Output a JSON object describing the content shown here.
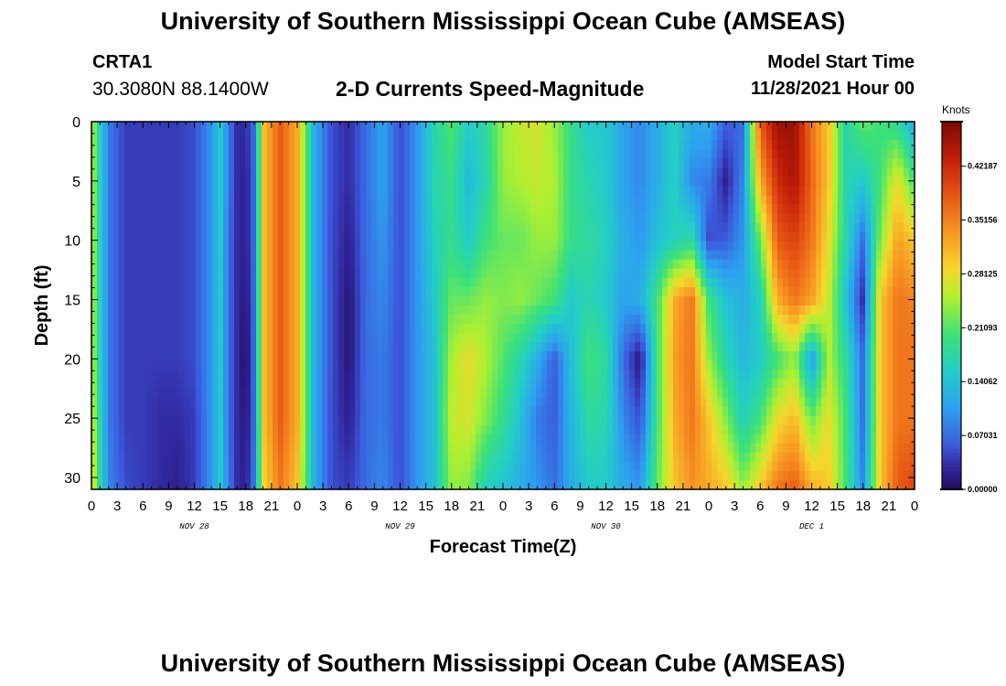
{
  "header": {
    "title": "University of Southern Mississippi Ocean Cube (AMSEAS)",
    "station": "CRTA1",
    "coords": "30.3080N  88.1400W",
    "plot_title": "2-D Currents Speed-Magnitude",
    "model_start_label": "Model Start Time",
    "model_start_value": "11/28/2021 Hour 00"
  },
  "footer": {
    "title": "University of Southern Mississippi Ocean Cube (AMSEAS)"
  },
  "chart_data": {
    "type": "heatmap",
    "title": "2-D Currents Speed-Magnitude",
    "xlabel": "Forecast Time(Z)",
    "ylabel": "Depth (ft)",
    "x_unit": "hours since 11/28/2021 00Z",
    "xlim": [
      0,
      96
    ],
    "ylim": [
      0,
      31
    ],
    "y_inverted": true,
    "x_ticks": [
      0,
      3,
      6,
      9,
      12,
      15,
      18,
      21,
      24,
      27,
      30,
      33,
      36,
      39,
      42,
      45,
      48,
      51,
      54,
      57,
      60,
      63,
      66,
      69,
      72,
      75,
      78,
      81,
      84,
      87,
      90,
      93,
      96
    ],
    "x_tick_labels": [
      "0",
      "3",
      "6",
      "9",
      "12",
      "15",
      "18",
      "21",
      "0",
      "3",
      "6",
      "9",
      "12",
      "15",
      "18",
      "21",
      "0",
      "3",
      "6",
      "9",
      "12",
      "15",
      "18",
      "21",
      "0",
      "3",
      "6",
      "9",
      "12",
      "15",
      "18",
      "21",
      "0"
    ],
    "y_ticks": [
      0,
      5,
      10,
      15,
      20,
      25,
      30
    ],
    "y_tick_labels": [
      "0",
      "5",
      "10",
      "15",
      "20",
      "25",
      "30"
    ],
    "day_labels": [
      {
        "label": "NOV 28",
        "hour": 12
      },
      {
        "label": "NOV 29",
        "hour": 36
      },
      {
        "label": "NOV 30",
        "hour": 60
      },
      {
        "label": "DEC 1",
        "hour": 84
      }
    ],
    "colorbar": {
      "unit": "Knots",
      "range": [
        0,
        0.48
      ],
      "ticks": [
        0.0,
        0.07031,
        0.14062,
        0.21093,
        0.28125,
        0.35156,
        0.42187
      ],
      "tick_labels": [
        "0.00000",
        "0.07031",
        "0.14062",
        "0.21093",
        "0.28125",
        "0.35156",
        "0.42187"
      ]
    },
    "depths_ft": [
      0,
      5,
      10,
      15,
      20,
      25,
      31
    ],
    "hours": [
      0,
      1,
      2,
      4,
      6,
      8,
      10,
      12,
      14,
      15,
      16,
      17,
      18,
      19,
      20,
      22,
      24,
      26,
      28,
      30,
      32,
      34,
      36,
      38,
      40,
      42,
      44,
      46,
      48,
      50,
      52,
      54,
      56,
      58,
      60,
      62,
      64,
      66,
      68,
      70,
      72,
      74,
      76,
      78,
      80,
      82,
      84,
      86,
      88,
      90,
      92,
      94,
      96
    ],
    "values": [
      [
        0.26,
        0.26,
        0.26,
        0.26,
        0.26,
        0.27,
        0.29
      ],
      [
        0.16,
        0.16,
        0.16,
        0.16,
        0.16,
        0.17,
        0.18
      ],
      [
        0.08,
        0.08,
        0.08,
        0.08,
        0.08,
        0.08,
        0.09
      ],
      [
        0.04,
        0.04,
        0.04,
        0.04,
        0.04,
        0.04,
        0.05
      ],
      [
        0.04,
        0.04,
        0.04,
        0.04,
        0.04,
        0.04,
        0.04
      ],
      [
        0.04,
        0.04,
        0.04,
        0.04,
        0.04,
        0.03,
        0.03
      ],
      [
        0.04,
        0.04,
        0.04,
        0.04,
        0.04,
        0.03,
        0.02
      ],
      [
        0.05,
        0.05,
        0.05,
        0.05,
        0.05,
        0.04,
        0.04
      ],
      [
        0.1,
        0.1,
        0.1,
        0.1,
        0.1,
        0.1,
        0.1
      ],
      [
        0.15,
        0.15,
        0.15,
        0.15,
        0.15,
        0.15,
        0.15
      ],
      [
        0.08,
        0.08,
        0.07,
        0.07,
        0.07,
        0.07,
        0.08
      ],
      [
        0.03,
        0.03,
        0.03,
        0.03,
        0.03,
        0.03,
        0.03
      ],
      [
        0.03,
        0.02,
        0.02,
        0.01,
        0.0,
        0.01,
        0.02
      ],
      [
        0.07,
        0.07,
        0.07,
        0.07,
        0.07,
        0.07,
        0.08
      ],
      [
        0.3,
        0.3,
        0.3,
        0.3,
        0.3,
        0.3,
        0.28
      ],
      [
        0.38,
        0.38,
        0.38,
        0.38,
        0.38,
        0.38,
        0.36
      ],
      [
        0.32,
        0.32,
        0.32,
        0.32,
        0.32,
        0.32,
        0.3
      ],
      [
        0.12,
        0.12,
        0.12,
        0.12,
        0.12,
        0.12,
        0.12
      ],
      [
        0.05,
        0.05,
        0.05,
        0.05,
        0.05,
        0.05,
        0.05
      ],
      [
        0.03,
        0.03,
        0.02,
        0.01,
        0.01,
        0.02,
        0.04
      ],
      [
        0.07,
        0.07,
        0.07,
        0.07,
        0.07,
        0.07,
        0.07
      ],
      [
        0.11,
        0.11,
        0.1,
        0.09,
        0.08,
        0.08,
        0.09
      ],
      [
        0.05,
        0.05,
        0.05,
        0.05,
        0.05,
        0.05,
        0.05
      ],
      [
        0.1,
        0.1,
        0.1,
        0.1,
        0.1,
        0.1,
        0.1
      ],
      [
        0.17,
        0.17,
        0.16,
        0.15,
        0.14,
        0.14,
        0.14
      ],
      [
        0.21,
        0.19,
        0.19,
        0.22,
        0.25,
        0.26,
        0.24
      ],
      [
        0.15,
        0.13,
        0.15,
        0.22,
        0.28,
        0.27,
        0.23
      ],
      [
        0.18,
        0.17,
        0.2,
        0.24,
        0.25,
        0.23,
        0.16
      ],
      [
        0.24,
        0.24,
        0.22,
        0.23,
        0.21,
        0.19,
        0.14
      ],
      [
        0.26,
        0.25,
        0.22,
        0.24,
        0.17,
        0.14,
        0.12
      ],
      [
        0.27,
        0.26,
        0.24,
        0.22,
        0.12,
        0.08,
        0.1
      ],
      [
        0.24,
        0.25,
        0.24,
        0.2,
        0.06,
        0.06,
        0.07
      ],
      [
        0.19,
        0.19,
        0.19,
        0.15,
        0.14,
        0.13,
        0.12
      ],
      [
        0.15,
        0.17,
        0.18,
        0.17,
        0.2,
        0.18,
        0.15
      ],
      [
        0.15,
        0.15,
        0.16,
        0.15,
        0.18,
        0.17,
        0.15
      ],
      [
        0.11,
        0.11,
        0.12,
        0.11,
        0.07,
        0.09,
        0.12
      ],
      [
        0.09,
        0.09,
        0.1,
        0.12,
        0.01,
        0.05,
        0.1
      ],
      [
        0.12,
        0.12,
        0.14,
        0.2,
        0.2,
        0.2,
        0.22
      ],
      [
        0.16,
        0.16,
        0.16,
        0.32,
        0.33,
        0.32,
        0.3
      ],
      [
        0.12,
        0.09,
        0.18,
        0.36,
        0.36,
        0.36,
        0.34
      ],
      [
        0.12,
        0.08,
        0.05,
        0.2,
        0.24,
        0.3,
        0.32
      ],
      [
        0.06,
        0.02,
        0.06,
        0.14,
        0.17,
        0.23,
        0.3
      ],
      [
        0.07,
        0.09,
        0.1,
        0.12,
        0.13,
        0.16,
        0.24
      ],
      [
        0.38,
        0.32,
        0.22,
        0.16,
        0.15,
        0.2,
        0.3
      ],
      [
        0.46,
        0.42,
        0.38,
        0.32,
        0.2,
        0.28,
        0.36
      ],
      [
        0.46,
        0.45,
        0.4,
        0.36,
        0.24,
        0.31,
        0.38
      ],
      [
        0.36,
        0.37,
        0.36,
        0.33,
        0.1,
        0.22,
        0.32
      ],
      [
        0.3,
        0.3,
        0.28,
        0.26,
        0.25,
        0.28,
        0.3
      ],
      [
        0.17,
        0.17,
        0.17,
        0.14,
        0.18,
        0.2,
        0.2
      ],
      [
        0.22,
        0.15,
        0.07,
        0.03,
        0.07,
        0.07,
        0.09
      ],
      [
        0.2,
        0.2,
        0.23,
        0.3,
        0.3,
        0.3,
        0.3
      ],
      [
        0.18,
        0.28,
        0.33,
        0.36,
        0.36,
        0.36,
        0.38
      ],
      [
        0.11,
        0.2,
        0.3,
        0.35,
        0.36,
        0.36,
        0.4
      ]
    ]
  }
}
